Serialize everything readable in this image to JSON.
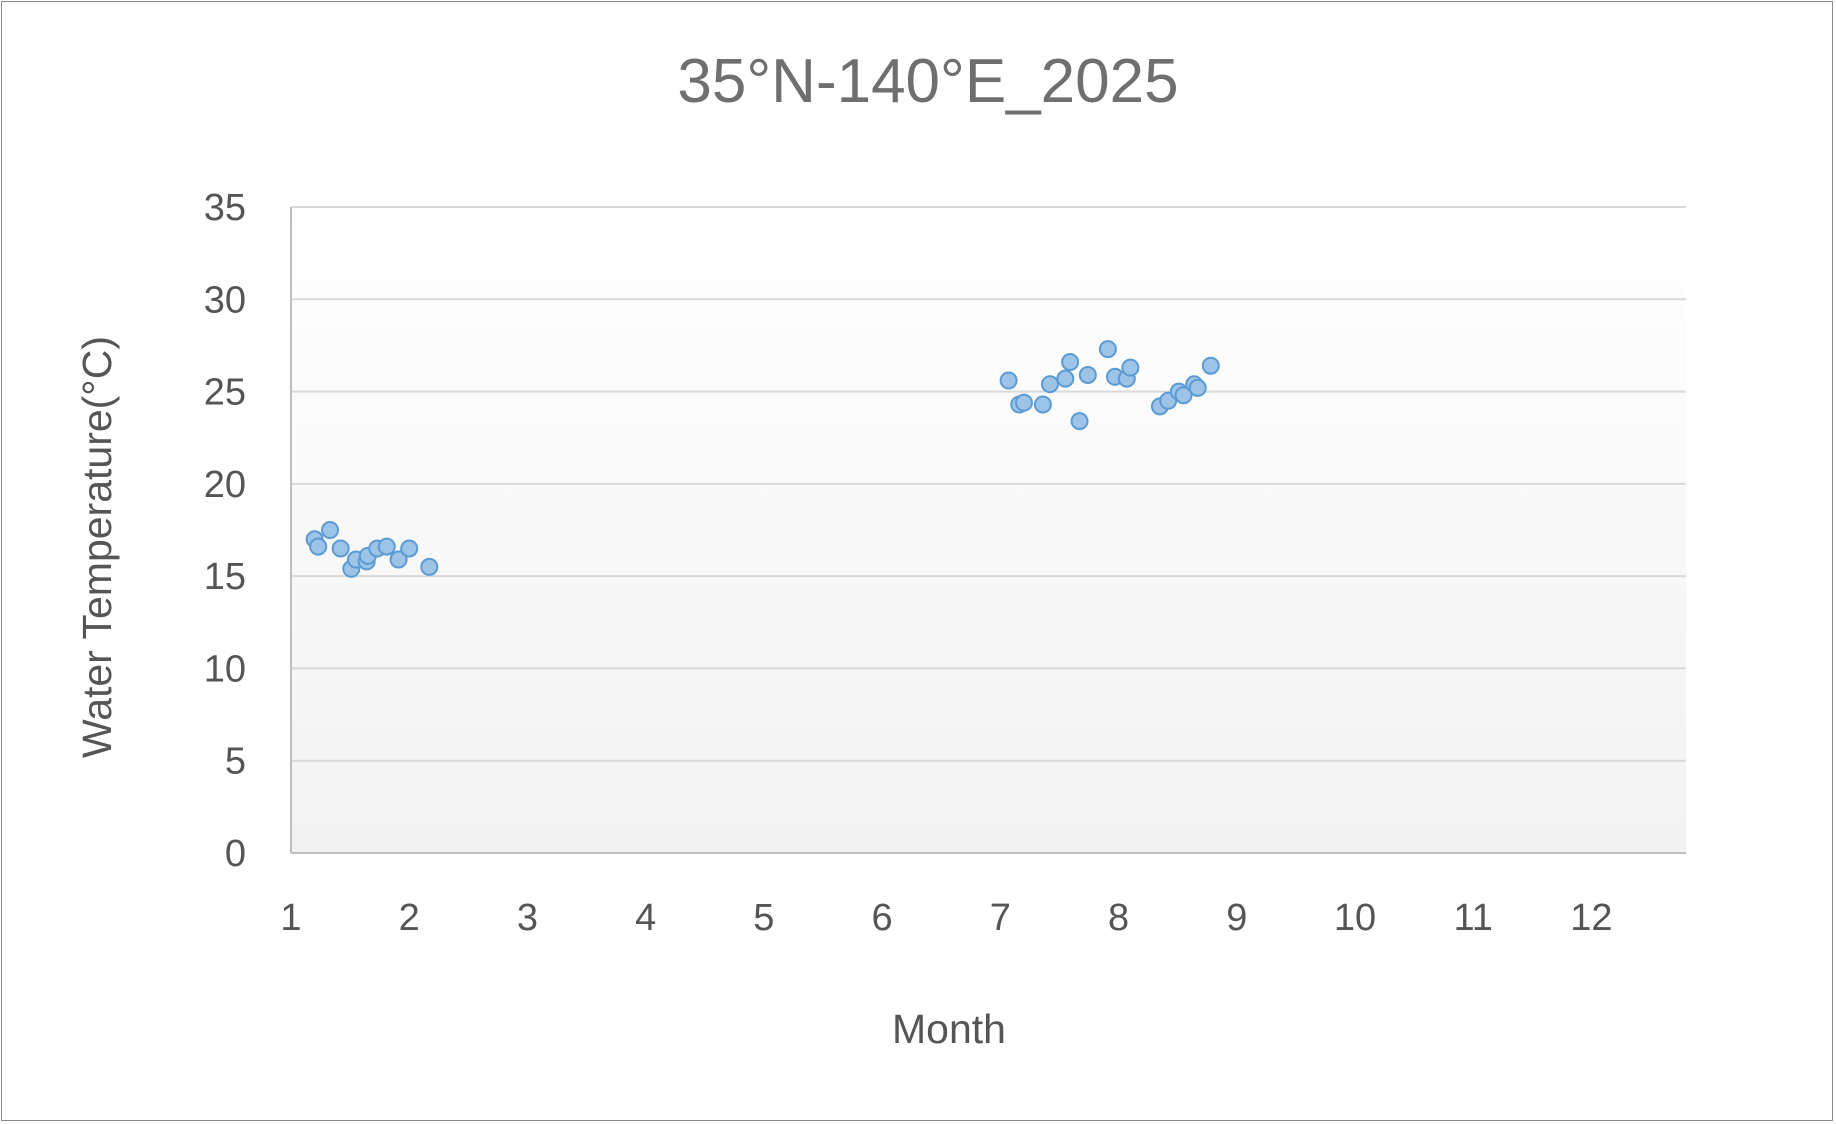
{
  "chart_data": {
    "type": "scatter",
    "title": "35°N-140°E_2025",
    "xlabel": "Month",
    "ylabel": "Water Temperature(°C)",
    "xlim": [
      1,
      12.8
    ],
    "ylim": [
      0,
      35
    ],
    "xticks": [
      1,
      2,
      3,
      4,
      5,
      6,
      7,
      8,
      9,
      10,
      11,
      12
    ],
    "yticks": [
      0,
      5,
      10,
      15,
      20,
      25,
      30,
      35
    ],
    "grid": true,
    "legend": "none",
    "marker_fill": "#9dc3e6",
    "marker_stroke": "#5b9bd5",
    "series": [
      {
        "points": [
          [
            1.2,
            17.0
          ],
          [
            1.23,
            16.6
          ],
          [
            1.33,
            17.5
          ],
          [
            1.42,
            16.5
          ],
          [
            1.51,
            15.4
          ],
          [
            1.55,
            15.9
          ],
          [
            1.64,
            15.8
          ],
          [
            1.65,
            16.1
          ],
          [
            1.73,
            16.5
          ],
          [
            1.81,
            16.6
          ],
          [
            1.91,
            15.9
          ],
          [
            2.0,
            16.5
          ],
          [
            2.17,
            15.5
          ],
          [
            7.07,
            25.6
          ],
          [
            7.16,
            24.3
          ],
          [
            7.2,
            24.4
          ],
          [
            7.36,
            24.3
          ],
          [
            7.42,
            25.4
          ],
          [
            7.55,
            25.7
          ],
          [
            7.59,
            26.6
          ],
          [
            7.67,
            23.4
          ],
          [
            7.74,
            25.9
          ],
          [
            7.91,
            27.3
          ],
          [
            7.97,
            25.8
          ],
          [
            8.07,
            25.7
          ],
          [
            8.1,
            26.3
          ],
          [
            8.35,
            24.2
          ],
          [
            8.42,
            24.5
          ],
          [
            8.51,
            25.0
          ],
          [
            8.55,
            24.8
          ],
          [
            8.64,
            25.4
          ],
          [
            8.67,
            25.2
          ],
          [
            8.78,
            26.4
          ]
        ]
      }
    ]
  }
}
